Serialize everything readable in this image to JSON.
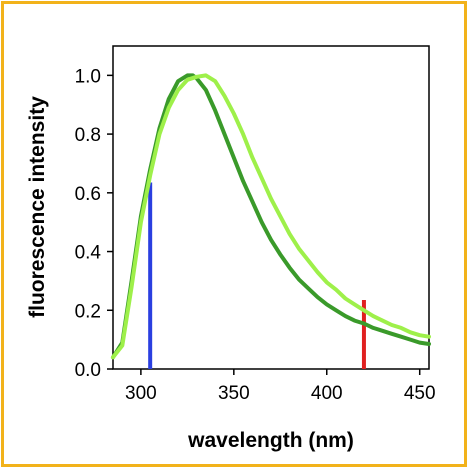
{
  "chart_data": {
    "type": "line",
    "xlabel": "wavelength (nm)",
    "ylabel": "fluorescence intensity",
    "xlim": [
      285,
      455
    ],
    "ylim": [
      0.0,
      1.1
    ],
    "x_ticks": [
      "300",
      "350",
      "400",
      "450"
    ],
    "y_ticks": [
      "0.0",
      "0.2",
      "0.4",
      "0.6",
      "0.8",
      "1.0"
    ],
    "grid": false,
    "legend": "none",
    "series": [
      {
        "color": "#3a9a2a",
        "x": [
          285,
          290,
          295,
          300,
          305,
          310,
          315,
          320,
          325,
          328,
          330,
          335,
          340,
          345,
          350,
          355,
          360,
          365,
          370,
          375,
          380,
          385,
          390,
          395,
          400,
          405,
          410,
          415,
          420,
          425,
          430,
          435,
          440,
          445,
          450,
          455
        ],
        "y": [
          0.04,
          0.09,
          0.3,
          0.52,
          0.68,
          0.82,
          0.92,
          0.98,
          1.0,
          1.0,
          0.99,
          0.95,
          0.88,
          0.8,
          0.72,
          0.64,
          0.57,
          0.5,
          0.44,
          0.39,
          0.345,
          0.305,
          0.275,
          0.245,
          0.22,
          0.2,
          0.18,
          0.165,
          0.155,
          0.14,
          0.13,
          0.12,
          0.11,
          0.1,
          0.09,
          0.085
        ]
      },
      {
        "color": "#9ef04a",
        "x": [
          285,
          290,
          295,
          300,
          305,
          310,
          315,
          320,
          325,
          330,
          335,
          340,
          345,
          350,
          355,
          360,
          365,
          370,
          375,
          380,
          385,
          390,
          395,
          400,
          405,
          410,
          415,
          420,
          425,
          430,
          435,
          440,
          445,
          450,
          455
        ],
        "y": [
          0.04,
          0.08,
          0.28,
          0.5,
          0.66,
          0.8,
          0.89,
          0.95,
          0.985,
          0.995,
          1.0,
          0.98,
          0.93,
          0.87,
          0.8,
          0.72,
          0.65,
          0.58,
          0.52,
          0.46,
          0.41,
          0.37,
          0.33,
          0.295,
          0.27,
          0.24,
          0.22,
          0.2,
          0.18,
          0.165,
          0.15,
          0.14,
          0.125,
          0.115,
          0.11
        ]
      }
    ],
    "markers": [
      {
        "x": 305,
        "y": 0.635,
        "color": "#2a3fe0"
      },
      {
        "x": 420,
        "y": 0.235,
        "color": "#e02020"
      }
    ]
  }
}
